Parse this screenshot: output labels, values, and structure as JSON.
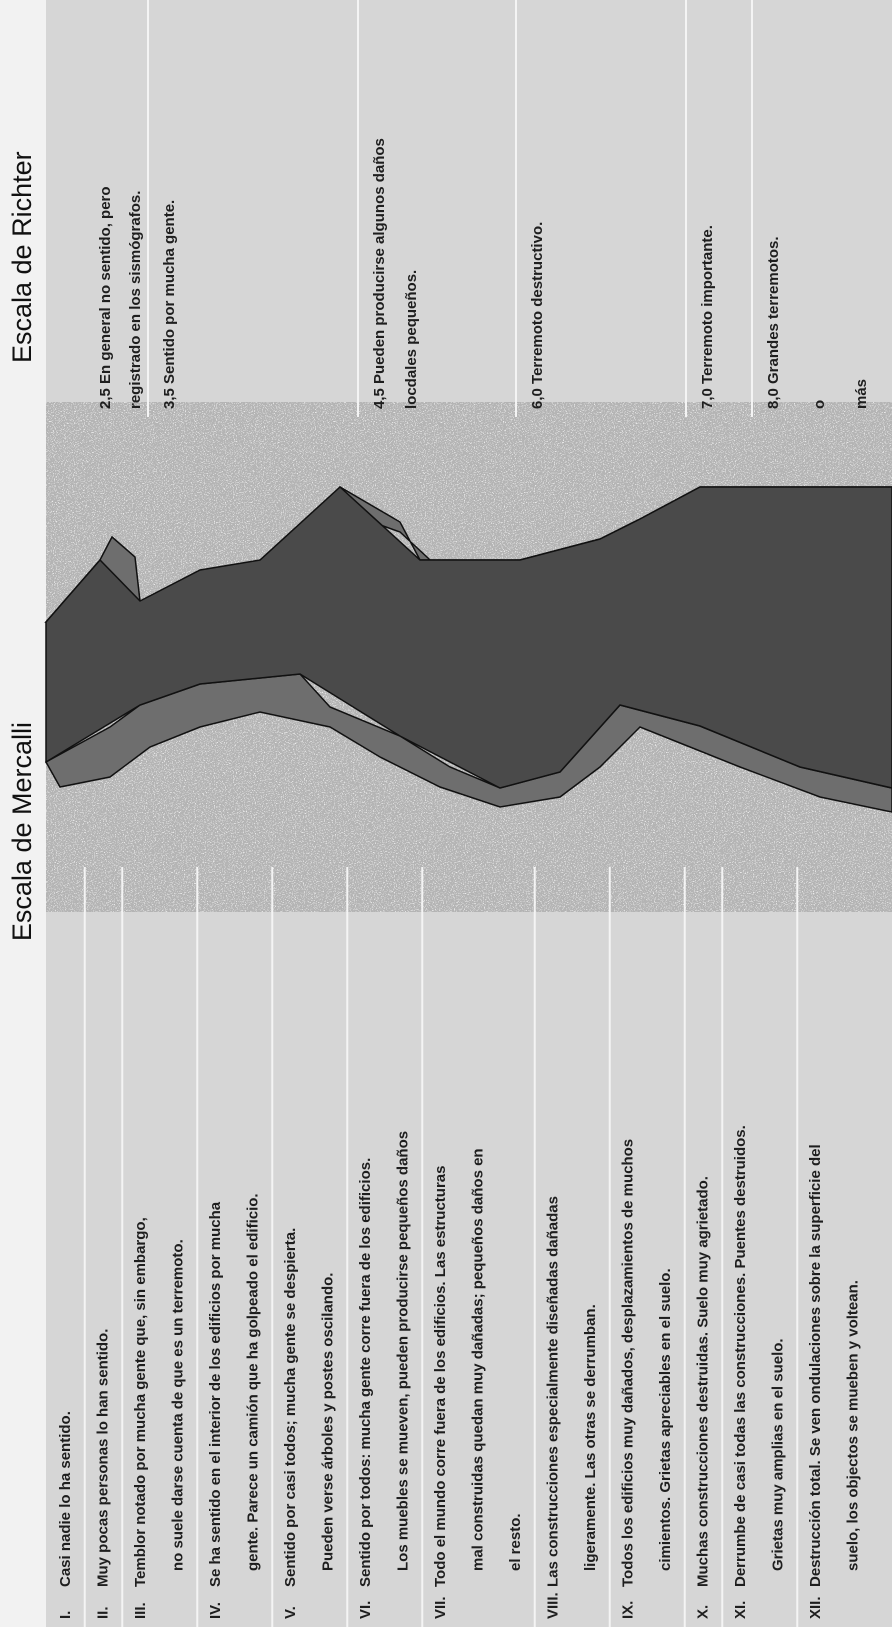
{
  "mercalli": {
    "title": "Escala de Mercalli",
    "items": [
      {
        "numeral": "I.",
        "lines": [
          "Casi nadie lo ha sentido."
        ]
      },
      {
        "numeral": "II.",
        "lines": [
          "Muy pocas personas lo han sentido."
        ]
      },
      {
        "numeral": "III.",
        "lines": [
          "Temblor notado por mucha gente que, sin embargo,",
          "no suele darse cuenta de que es un terremoto."
        ]
      },
      {
        "numeral": "IV.",
        "lines": [
          "Se ha sentido en el interior de los edificios por mucha",
          "gente.  Parece un camión que ha golpeado el edificio."
        ]
      },
      {
        "numeral": "V.",
        "lines": [
          "Sentido por casi todos; mucha gente se despierta.",
          "Pueden verse árboles y postes oscilando."
        ]
      },
      {
        "numeral": "VI.",
        "lines": [
          "Sentido por todos: mucha gente corre fuera de los edificios.",
          "Los muebles se mueven, pueden producirse pequeños daños"
        ]
      },
      {
        "numeral": "VII.",
        "lines": [
          "Todo el mundo corre fuera de los edificios.  Las estructuras",
          "mal construidas quedan muy dañadas; pequeños daños en",
          "el resto."
        ]
      },
      {
        "numeral": "VIII.",
        "lines": [
          "Las construcciones especialmente diseñadas dañadas",
          "ligeramente.  Las otras se derrumban."
        ]
      },
      {
        "numeral": "IX.",
        "lines": [
          "Todos los edificios muy dañados, desplazamientos de muchos",
          "cimientos.  Grietas apreciables en el suelo."
        ]
      },
      {
        "numeral": "X.",
        "lines": [
          "Muchas construcciones destruidas.  Suelo muy agrietado."
        ]
      },
      {
        "numeral": "XI.",
        "lines": [
          "Derrumbe de casi todas las construcciones.  Puentes destruidos.",
          "Grietas muy amplias en el suelo."
        ]
      },
      {
        "numeral": "XII.",
        "lines": [
          "Destrucción total.  Se ven ondulaciones sobre la superficie del",
          "suelo, los objectos se mueben y voltean."
        ]
      }
    ]
  },
  "richter": {
    "title": "Escala de Richter",
    "items": [
      {
        "lines": [
          "2,5 En general no sentido, pero",
          "registrado en los sismógrafos."
        ]
      },
      {
        "lines": [
          "3,5 Sentido por mucha gente."
        ]
      },
      {
        "lines": [
          "4,5 Pueden producirse algunos daños",
          "locdales pequeños."
        ]
      },
      {
        "lines": [
          "6,0 Terremoto destructivo."
        ]
      },
      {
        "lines": [
          "7,0 Terremoto importante."
        ]
      },
      {
        "lines": [
          "8,0  Grandes terremotos.",
          "o",
          "más"
        ]
      }
    ]
  }
}
